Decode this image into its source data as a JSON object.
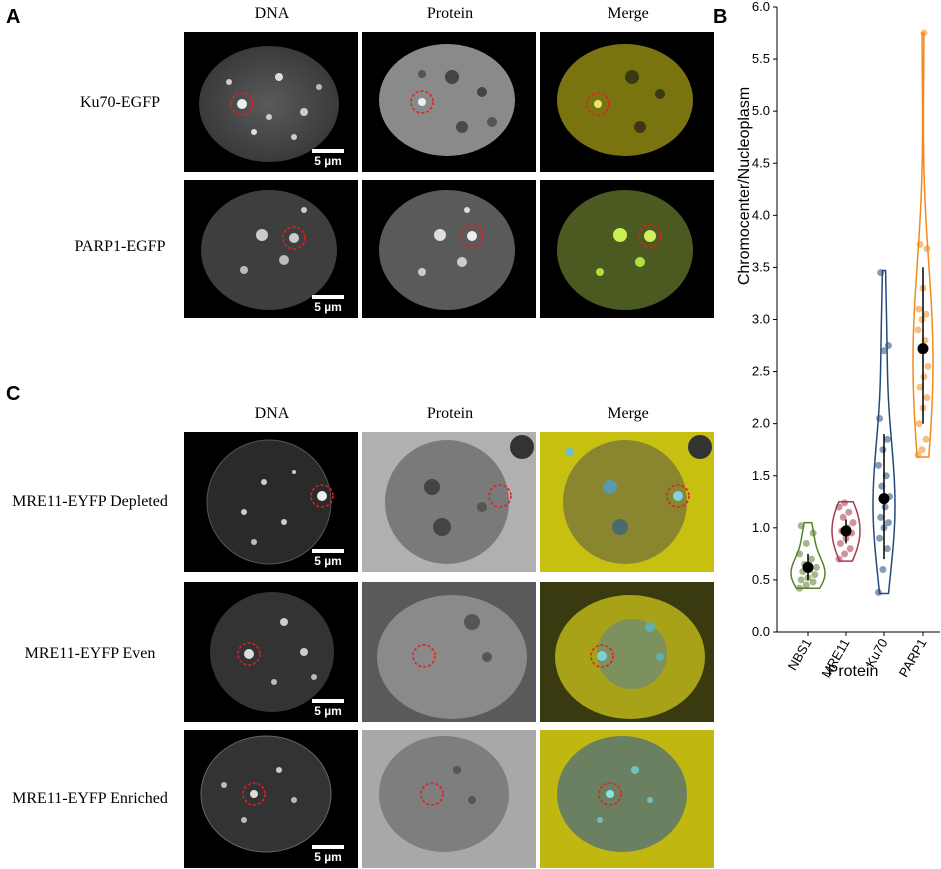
{
  "panels": {
    "a": "A",
    "b": "B",
    "c": "C"
  },
  "col_labels": {
    "dna": "DNA",
    "protein": "Protein",
    "merge": "Merge"
  },
  "rows_a": [
    "Ku70-EGFP",
    "PARP1-EGFP"
  ],
  "rows_c": [
    "MRE11-EYFP Depleted",
    "MRE11-EYFP Even",
    "MRE11-EYFP Enriched"
  ],
  "scale_bar": "5 µm",
  "colors": {
    "NBS1": "#5a7f2b",
    "MRE11": "#a83a4c",
    "Ku70": "#244a7a",
    "PARP1": "#f08a1c",
    "merge_yellow": "#c9c41a",
    "merge_green": "#a8d040",
    "circle": "#e02020"
  },
  "chart_data": {
    "type": "violin",
    "ylabel": "Chromocenter/Nucleoplasm",
    "xlabel": "Protein",
    "ylim": [
      0,
      6
    ],
    "yticks": [
      "0.0",
      "0.5",
      "1.0",
      "1.5",
      "2.0",
      "2.5",
      "3.0",
      "3.5",
      "4.0",
      "4.5",
      "5.0",
      "5.5",
      "6.0"
    ],
    "categories": [
      "NBS1",
      "MRE11",
      "Ku70",
      "PARP1"
    ],
    "series": [
      {
        "mean": 0.62,
        "err": [
          0.5,
          0.75
        ],
        "min": 0.42,
        "max": 1.05,
        "points": [
          0.42,
          0.45,
          0.48,
          0.5,
          0.52,
          0.55,
          0.58,
          0.6,
          0.62,
          0.65,
          0.7,
          0.75,
          0.85,
          0.95,
          1.02
        ]
      },
      {
        "mean": 0.97,
        "err": [
          0.85,
          1.08
        ],
        "min": 0.68,
        "max": 1.25,
        "points": [
          0.7,
          0.75,
          0.8,
          0.85,
          0.9,
          0.95,
          0.97,
          1.0,
          1.05,
          1.1,
          1.15,
          1.2,
          1.24
        ]
      },
      {
        "mean": 1.28,
        "err": [
          0.7,
          1.9
        ],
        "min": 0.37,
        "max": 3.47,
        "points": [
          0.38,
          0.6,
          0.8,
          0.9,
          1.0,
          1.05,
          1.1,
          1.2,
          1.3,
          1.4,
          1.5,
          1.6,
          1.75,
          1.85,
          2.05,
          2.7,
          2.75,
          3.45
        ]
      },
      {
        "mean": 2.72,
        "err": [
          2.0,
          3.5
        ],
        "min": 1.68,
        "max": 5.75,
        "points": [
          1.7,
          1.75,
          1.85,
          2.0,
          2.15,
          2.25,
          2.35,
          2.45,
          2.55,
          2.7,
          2.8,
          2.9,
          3.0,
          3.05,
          3.1,
          3.3,
          3.68,
          3.72,
          5.75
        ]
      }
    ]
  }
}
